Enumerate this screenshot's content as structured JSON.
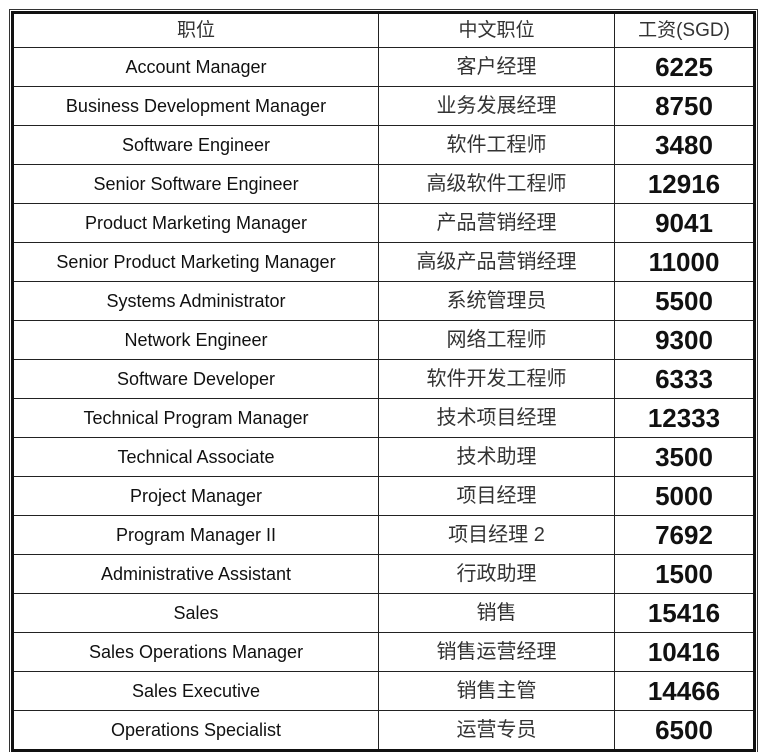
{
  "table": {
    "headers": [
      "职位",
      "中文职位",
      "工资(SGD)"
    ],
    "rows": [
      [
        "Account Manager",
        "客户经理",
        "6225"
      ],
      [
        "Business Development Manager",
        "业务发展经理",
        "8750"
      ],
      [
        "Software Engineer",
        "软件工程师",
        "3480"
      ],
      [
        "Senior Software Engineer",
        "高级软件工程师",
        "12916"
      ],
      [
        "Product Marketing Manager",
        "产品营销经理",
        "9041"
      ],
      [
        "Senior Product Marketing Manager",
        "高级产品营销经理",
        "11000"
      ],
      [
        "Systems Administrator",
        "系统管理员",
        "5500"
      ],
      [
        "Network Engineer",
        "网络工程师",
        "9300"
      ],
      [
        "Software Developer",
        "软件开发工程师",
        "6333"
      ],
      [
        "Technical Program Manager",
        "技术项目经理",
        "12333"
      ],
      [
        "Technical Associate",
        "技术助理",
        "3500"
      ],
      [
        "Project Manager",
        "项目经理",
        "5000"
      ],
      [
        "Program Manager II",
        "项目经理 2",
        "7692"
      ],
      [
        "Administrative Assistant",
        "行政助理",
        "1500"
      ],
      [
        "Sales",
        "销售",
        "15416"
      ],
      [
        "Sales Operations Manager",
        "销售运营经理",
        "10416"
      ],
      [
        "Sales Executive",
        "销售主管",
        "14466"
      ],
      [
        "Operations Specialist",
        "运营专员",
        "6500"
      ]
    ]
  }
}
